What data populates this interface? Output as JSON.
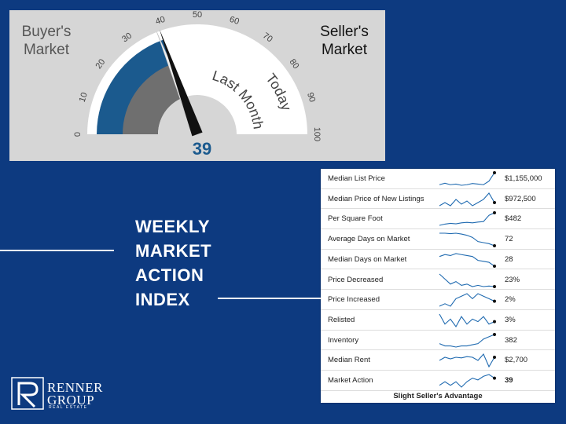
{
  "gauge": {
    "buyer_label": "Buyer's\nMarket",
    "seller_label": "Seller's\nMarket",
    "tick_labels": [
      "0",
      "10",
      "20",
      "30",
      "40",
      "50",
      "60",
      "70",
      "80",
      "90",
      "100"
    ],
    "last_month_label": "Last Month",
    "today_label": "Today",
    "value": 39,
    "last_month_value": 38,
    "colors": {
      "panel": "#d6d6d6",
      "buyer_arc": "#1b5a8e",
      "last_month_arc": "#6f6f6f",
      "needle": "#111111"
    }
  },
  "title": {
    "line1": "WEEKLY",
    "line2": "MARKET",
    "line3": "ACTION",
    "line4": "INDEX"
  },
  "table": {
    "rows": [
      {
        "label": "Median List Price",
        "value": "$1,155,000",
        "trend": [
          5,
          5.5,
          5,
          5.2,
          4.8,
          5,
          5.4,
          5.2,
          5,
          6.2,
          9
        ]
      },
      {
        "label": "Median Price of New Listings",
        "value": "$972,500",
        "trend": [
          4,
          5,
          4,
          6,
          4.5,
          5.5,
          4,
          5,
          6,
          8,
          5
        ]
      },
      {
        "label": "Per Square Foot",
        "value": "$482",
        "trend": [
          3,
          3.5,
          3.8,
          3.6,
          4,
          4.2,
          4,
          4.3,
          4.5,
          7,
          8
        ]
      },
      {
        "label": "Average Days on Market",
        "value": "72",
        "trend": [
          8,
          8,
          7.8,
          8,
          7.6,
          7,
          6,
          4,
          3.5,
          3,
          2
        ]
      },
      {
        "label": "Median Days on Market",
        "value": "28",
        "trend": [
          6,
          7,
          6.5,
          7.5,
          7,
          6.5,
          6,
          4,
          3.5,
          3,
          1
        ]
      },
      {
        "label": "Price Decreased",
        "value": "23%",
        "trend": [
          8,
          6,
          4,
          5,
          3.5,
          4,
          3,
          3.5,
          3,
          3.2,
          3
        ]
      },
      {
        "label": "Price Increased",
        "value": "2%",
        "trend": [
          2,
          3,
          2,
          5,
          6,
          7,
          5,
          7,
          6,
          5,
          4
        ]
      },
      {
        "label": "Relisted",
        "value": "3%",
        "trend": [
          8,
          4,
          6,
          3,
          7,
          4,
          6,
          5,
          7,
          4,
          5
        ]
      },
      {
        "label": "Inventory",
        "value": "382",
        "trend": [
          4,
          3,
          3,
          2.5,
          3,
          3,
          3.5,
          4,
          6,
          7,
          8
        ]
      },
      {
        "label": "Median Rent",
        "value": "$2,700",
        "trend": [
          5,
          6,
          5.5,
          6,
          5.8,
          6.2,
          6,
          5,
          7,
          3,
          6
        ]
      },
      {
        "label": "Market Action",
        "value": "39",
        "bold": true,
        "trend": [
          5,
          6,
          5,
          6,
          4.5,
          6,
          7,
          6.5,
          7.5,
          8,
          7
        ]
      }
    ],
    "footer": "Slight Seller's Advantage",
    "colors": {
      "spark": "#1f6ab0"
    }
  },
  "logo": {
    "word1": "RENNER",
    "word2": "GROUP",
    "word3": "REAL ESTATE"
  }
}
